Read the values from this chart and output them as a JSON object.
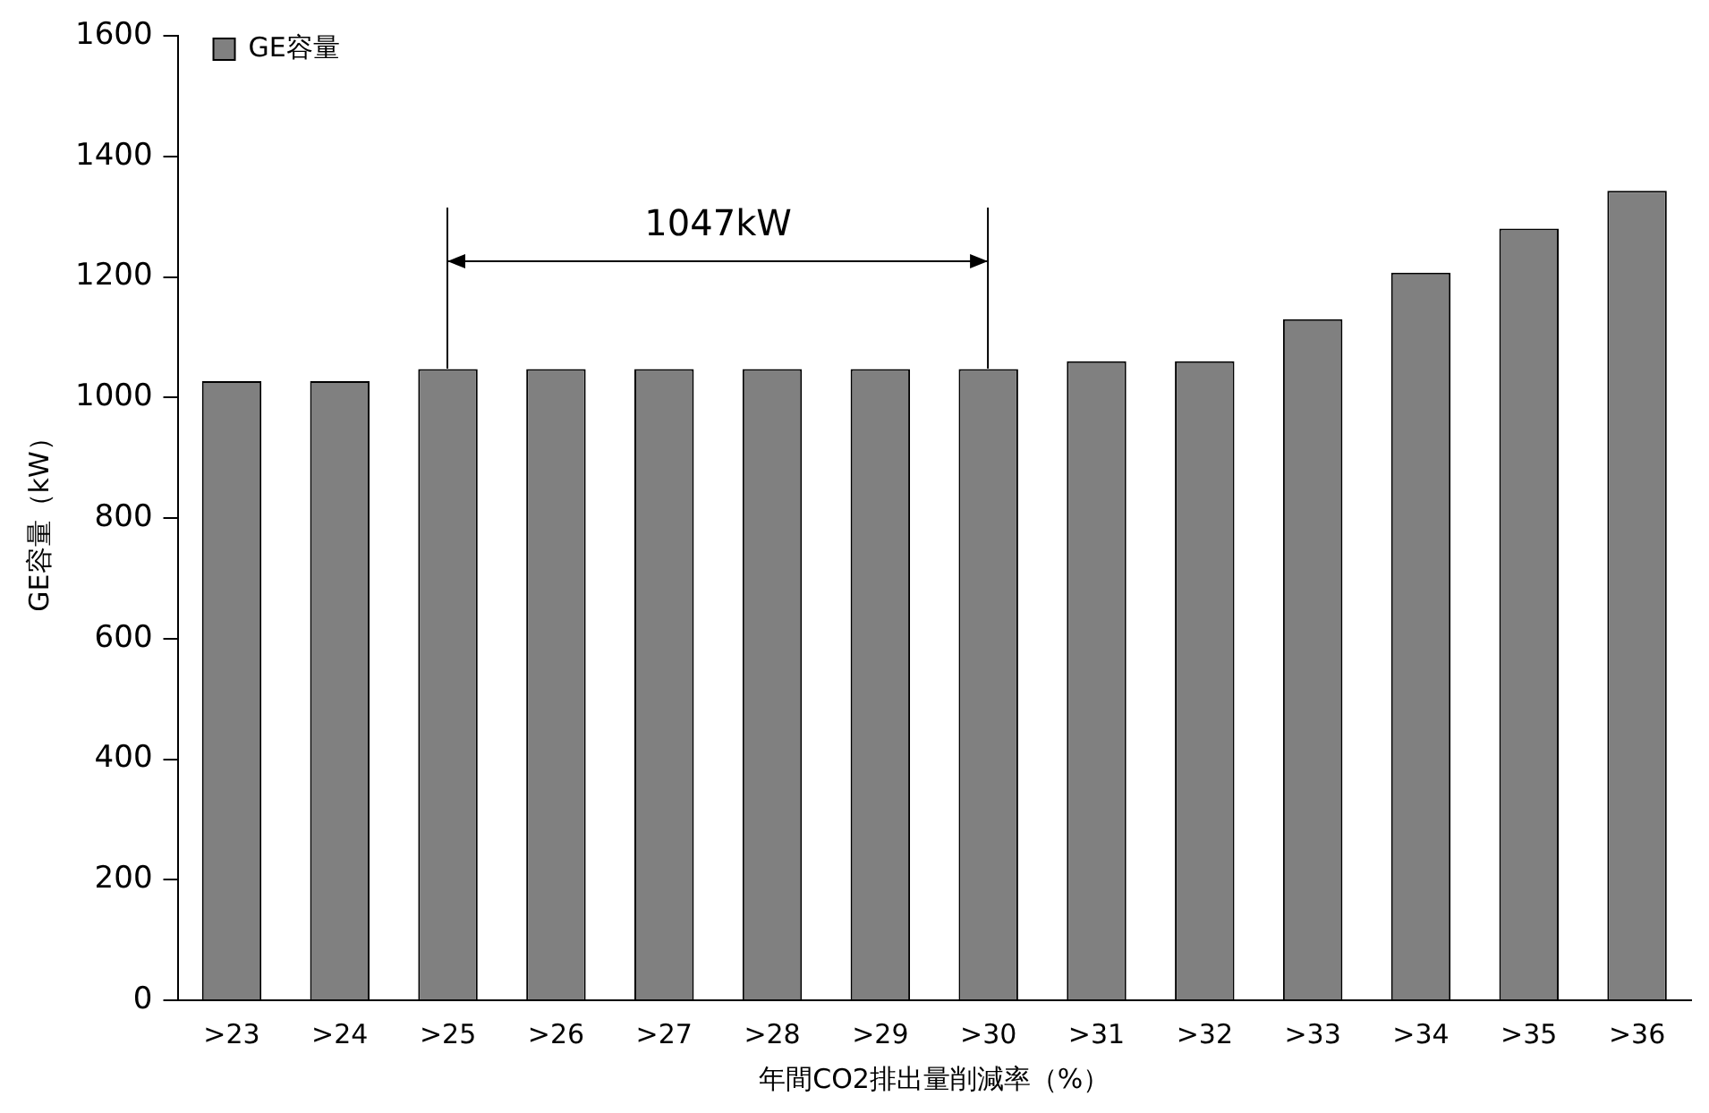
{
  "chart_data": {
    "type": "bar",
    "xlabel": "年間CO2排出量削減率（%）",
    "ylabel": "GE容量（kW）",
    "categories": [
      ">23",
      ">24",
      ">25",
      ">26",
      ">27",
      ">28",
      ">29",
      ">30",
      ">31",
      ">32",
      ">33",
      ">34",
      ">35",
      ">36"
    ],
    "series": [
      {
        "name": "GE容量",
        "color": "#808080",
        "values": [
          1027,
          1027,
          1047,
          1047,
          1047,
          1047,
          1047,
          1047,
          1060,
          1060,
          1130,
          1207,
          1280,
          1343
        ]
      }
    ],
    "ylim": [
      0,
      1600
    ],
    "yticks": [
      0,
      200,
      400,
      600,
      800,
      1000,
      1200,
      1400,
      1600
    ],
    "grid": false,
    "legend": "top left",
    "annotations": [
      "1047kW"
    ]
  }
}
